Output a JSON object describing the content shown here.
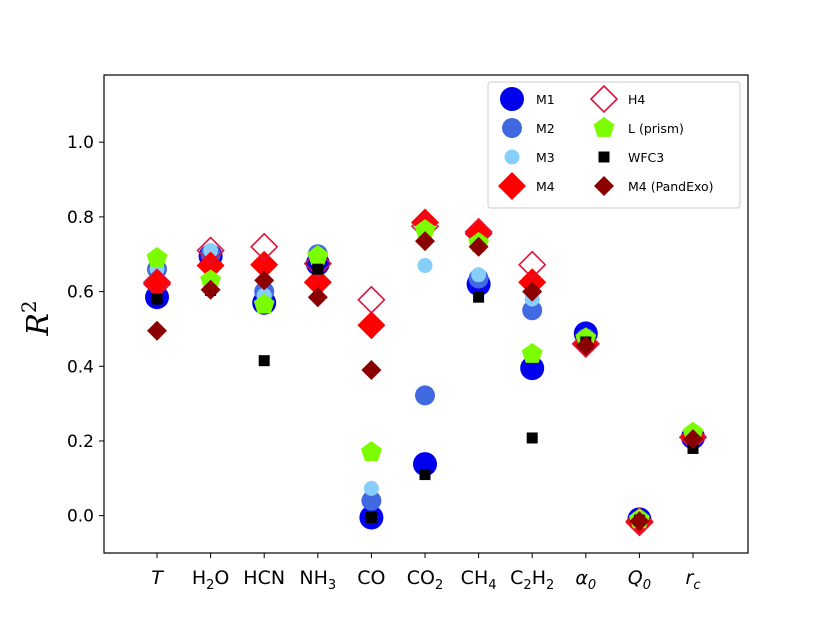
{
  "chart_data": {
    "type": "scatter",
    "ylabel": "R²",
    "ylabel_parts": {
      "base": "R",
      "sup": "2"
    },
    "ylim": [
      -0.1,
      1.18
    ],
    "yticks": [
      "0.0",
      "0.2",
      "0.4",
      "0.6",
      "0.8",
      "1.0"
    ],
    "ytick_values": [
      0.0,
      0.2,
      0.4,
      0.6,
      0.8,
      1.0
    ],
    "categories": [
      "T",
      "H2O",
      "HCN",
      "NH3",
      "CO",
      "CO2",
      "CH4",
      "C2H2",
      "α0",
      "Q0",
      "rc"
    ],
    "category_labels": [
      {
        "base": "T",
        "sub": "",
        "italic": true
      },
      {
        "base": "H",
        "sub": "2",
        "tail": "O",
        "italic": false
      },
      {
        "base": "HCN",
        "sub": "",
        "italic": false
      },
      {
        "base": "NH",
        "sub": "3",
        "italic": false
      },
      {
        "base": "CO",
        "sub": "",
        "italic": false
      },
      {
        "base": "CO",
        "sub": "2",
        "italic": false
      },
      {
        "base": "CH",
        "sub": "4",
        "italic": false
      },
      {
        "base": "C",
        "sub": "2",
        "tail": "H",
        "sub2": "2",
        "italic": false
      },
      {
        "base": "α",
        "sub": "0",
        "italic": true
      },
      {
        "base": "Q",
        "sub": "0",
        "italic": true
      },
      {
        "base": "r",
        "sub": "c",
        "italic": true
      }
    ],
    "legend_position": "upper-right",
    "series": [
      {
        "name": "M1",
        "marker": "circle",
        "color": "#0000ee",
        "fill": true,
        "size": 12,
        "values": [
          0.585,
          0.695,
          0.57,
          0.675,
          -0.005,
          0.138,
          0.62,
          0.395,
          0.488,
          -0.01,
          0.21
        ]
      },
      {
        "name": "M2",
        "marker": "circle",
        "color": "#4169e1",
        "fill": true,
        "size": 10,
        "values": [
          0.66,
          0.7,
          0.6,
          0.7,
          0.04,
          0.322,
          0.635,
          0.55,
          0.475,
          -0.012,
          0.215
        ]
      },
      {
        "name": "M3",
        "marker": "circle",
        "color": "#87cefa",
        "fill": true,
        "size": 7.5,
        "values": [
          0.66,
          0.71,
          0.59,
          0.7,
          0.073,
          0.67,
          0.645,
          0.58,
          0.47,
          -0.01,
          0.21
        ]
      },
      {
        "name": "M4",
        "marker": "diamond",
        "color": "#ff0000",
        "fill": true,
        "size": 14,
        "values": [
          0.62,
          0.67,
          0.672,
          0.625,
          0.51,
          0.785,
          0.755,
          0.625,
          0.46,
          -0.018,
          0.21
        ]
      },
      {
        "name": "H4",
        "marker": "diamond",
        "color": "#dc143c",
        "fill": false,
        "size": 13,
        "values": [
          0.625,
          0.71,
          0.72,
          0.675,
          0.578,
          0.775,
          0.76,
          0.672,
          0.46,
          -0.015,
          0.21
        ]
      },
      {
        "name": "L (prism)",
        "marker": "pentagon",
        "color": "#7cfc00",
        "fill": true,
        "size": 11,
        "values": [
          0.69,
          0.63,
          0.565,
          0.695,
          0.17,
          0.765,
          0.73,
          0.433,
          0.475,
          -0.01,
          0.222
        ]
      },
      {
        "name": "WFC3",
        "marker": "square",
        "color": "#000000",
        "fill": true,
        "size": 5.5,
        "values": [
          0.58,
          0.603,
          0.415,
          0.66,
          -0.005,
          0.11,
          0.585,
          0.208,
          0.465,
          -0.012,
          0.18
        ]
      },
      {
        "name": "M4 (PandExo)",
        "marker": "diamond",
        "color": "#8b0000",
        "fill": true,
        "size": 10,
        "values": [
          0.495,
          0.605,
          0.63,
          0.585,
          0.39,
          0.735,
          0.72,
          0.6,
          0.455,
          -0.015,
          0.205
        ]
      }
    ]
  }
}
